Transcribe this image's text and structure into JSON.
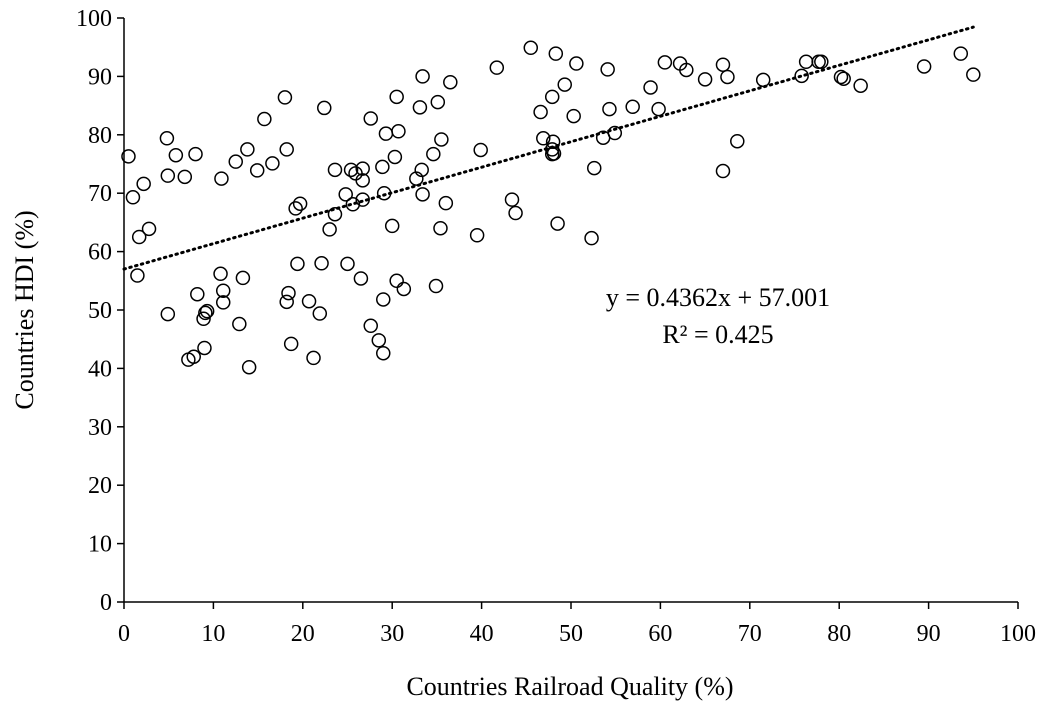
{
  "chart_data": {
    "type": "scatter",
    "title": "",
    "xlabel": "Countries Railroad Quality (%)",
    "ylabel": "Countries HDI (%)",
    "xlim": [
      0,
      100
    ],
    "ylim": [
      0,
      100
    ],
    "xticks": [
      "0",
      "10",
      "20",
      "30",
      "40",
      "50",
      "60",
      "70",
      "80",
      "90",
      "100"
    ],
    "yticks": [
      "0",
      "10",
      "20",
      "30",
      "40",
      "50",
      "60",
      "70",
      "80",
      "90",
      "100"
    ],
    "grid": false,
    "marker": "open-circle",
    "colors": {
      "marker": "#000000",
      "trendline": "#000000",
      "axis": "#000000"
    },
    "trendline": {
      "style": "dotted",
      "slope": 0.4362,
      "intercept": 57.001,
      "x_range": [
        0,
        95
      ],
      "equation": "y = 0.4362x + 57.001",
      "r_squared": "R² = 0.425"
    },
    "points": [
      [
        0.5,
        76.3
      ],
      [
        1,
        69.3
      ],
      [
        1.5,
        55.9
      ],
      [
        1.7,
        62.5
      ],
      [
        2.2,
        71.6
      ],
      [
        2.8,
        63.9
      ],
      [
        4.8,
        79.4
      ],
      [
        4.9,
        73
      ],
      [
        4.9,
        49.3
      ],
      [
        5.8,
        76.5
      ],
      [
        6.8,
        72.8
      ],
      [
        7.2,
        41.5
      ],
      [
        7.8,
        42
      ],
      [
        8,
        76.7
      ],
      [
        8.2,
        52.7
      ],
      [
        8.9,
        48.5
      ],
      [
        9,
        43.5
      ],
      [
        9.1,
        49.5
      ],
      [
        9.3,
        49.8
      ],
      [
        10.8,
        56.2
      ],
      [
        10.9,
        72.5
      ],
      [
        11.1,
        51.3
      ],
      [
        11.1,
        53.3
      ],
      [
        12.5,
        75.4
      ],
      [
        12.9,
        47.6
      ],
      [
        13.3,
        55.5
      ],
      [
        13.8,
        77.5
      ],
      [
        14,
        40.2
      ],
      [
        14.9,
        73.9
      ],
      [
        15.7,
        82.7
      ],
      [
        16.6,
        75.1
      ],
      [
        18,
        86.4
      ],
      [
        18.2,
        77.5
      ],
      [
        18.2,
        51.4
      ],
      [
        18.4,
        52.9
      ],
      [
        18.7,
        44.2
      ],
      [
        19.2,
        67.4
      ],
      [
        19.4,
        57.9
      ],
      [
        19.7,
        68.2
      ],
      [
        20.7,
        51.5
      ],
      [
        21.2,
        41.8
      ],
      [
        21.9,
        49.4
      ],
      [
        22.1,
        58
      ],
      [
        22.4,
        84.6
      ],
      [
        23,
        63.8
      ],
      [
        23.6,
        66.4
      ],
      [
        23.6,
        74
      ],
      [
        24.8,
        69.8
      ],
      [
        25,
        57.9
      ],
      [
        25.4,
        74
      ],
      [
        25.6,
        68.1
      ],
      [
        25.9,
        73.4
      ],
      [
        26.5,
        55.4
      ],
      [
        26.7,
        74.2
      ],
      [
        26.7,
        72.2
      ],
      [
        26.7,
        68.9
      ],
      [
        27.6,
        82.8
      ],
      [
        27.6,
        47.3
      ],
      [
        28.5,
        44.8
      ],
      [
        28.9,
        74.5
      ],
      [
        29,
        51.8
      ],
      [
        29,
        42.6
      ],
      [
        29.1,
        70
      ],
      [
        29.3,
        80.2
      ],
      [
        30,
        64.4
      ],
      [
        30.3,
        76.2
      ],
      [
        30.5,
        86.5
      ],
      [
        30.5,
        55
      ],
      [
        30.7,
        80.6
      ],
      [
        31.3,
        53.6
      ],
      [
        32.7,
        72.5
      ],
      [
        33.1,
        84.7
      ],
      [
        33.3,
        74
      ],
      [
        33.4,
        90
      ],
      [
        33.4,
        69.8
      ],
      [
        34.6,
        76.7
      ],
      [
        34.9,
        54.1
      ],
      [
        35.1,
        85.6
      ],
      [
        35.4,
        64
      ],
      [
        35.5,
        79.2
      ],
      [
        36,
        68.3
      ],
      [
        36.5,
        89
      ],
      [
        39.5,
        62.8
      ],
      [
        39.9,
        77.4
      ],
      [
        41.7,
        91.5
      ],
      [
        43.4,
        68.9
      ],
      [
        43.8,
        66.6
      ],
      [
        45.5,
        94.9
      ],
      [
        46.6,
        83.9
      ],
      [
        46.9,
        79.4
      ],
      [
        47.9,
        86.5
      ],
      [
        47.9,
        77.5
      ],
      [
        47.9,
        76.7
      ],
      [
        48,
        78.8
      ],
      [
        48.1,
        76.8
      ],
      [
        48.3,
        93.9
      ],
      [
        48.5,
        64.8
      ],
      [
        49.3,
        88.6
      ],
      [
        50.3,
        83.2
      ],
      [
        50.6,
        92.2
      ],
      [
        52.3,
        62.3
      ],
      [
        52.6,
        74.3
      ],
      [
        53.6,
        79.5
      ],
      [
        54.1,
        91.2
      ],
      [
        54.3,
        84.4
      ],
      [
        54.9,
        80.3
      ],
      [
        56.9,
        84.8
      ],
      [
        58.9,
        88.1
      ],
      [
        59.8,
        84.4
      ],
      [
        60.5,
        92.4
      ],
      [
        62.2,
        92.2
      ],
      [
        62.9,
        91.1
      ],
      [
        65,
        89.5
      ],
      [
        67,
        73.8
      ],
      [
        67,
        92
      ],
      [
        67.5,
        89.9
      ],
      [
        68.6,
        78.9
      ],
      [
        71.5,
        89.4
      ],
      [
        75.8,
        90.1
      ],
      [
        76.3,
        92.5
      ],
      [
        77.7,
        92.5
      ],
      [
        78,
        92.5
      ],
      [
        80.2,
        89.9
      ],
      [
        80.5,
        89.6
      ],
      [
        82.4,
        88.4
      ],
      [
        89.5,
        91.7
      ],
      [
        93.6,
        93.9
      ],
      [
        95,
        90.3
      ]
    ]
  }
}
